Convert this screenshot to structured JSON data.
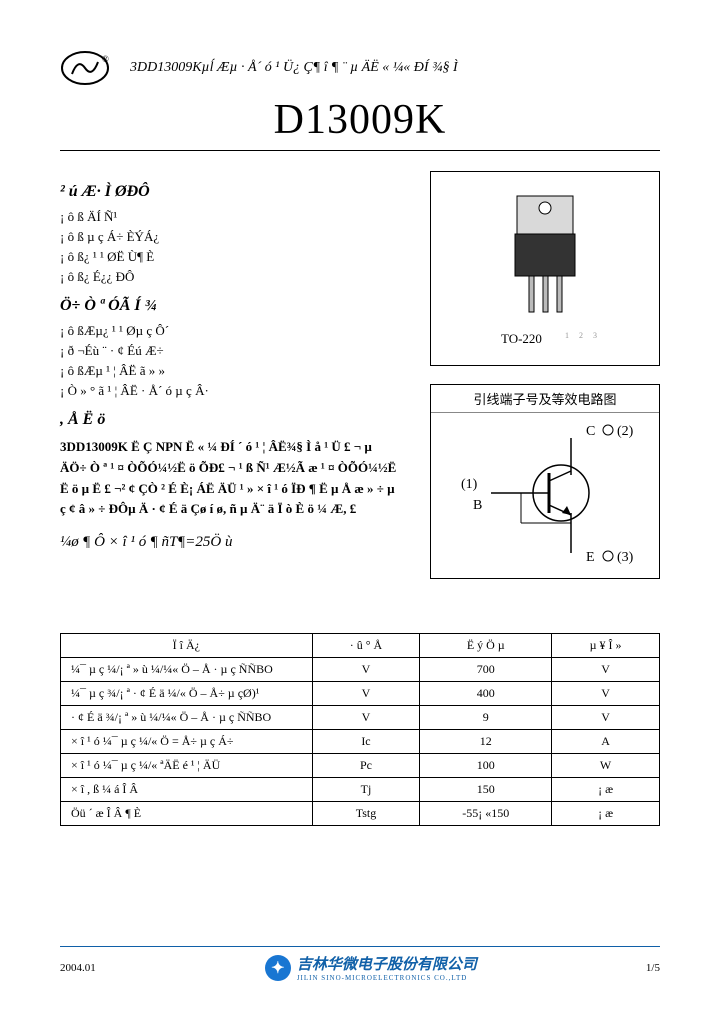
{
  "header": {
    "subtitle": "3DD13009Kµĺ Æµ · Å´ ó ¹ Ü¿ Ç¶ î ¶ ¨ µ ÄË « ¼« ÐÍ ¾§ Ì"
  },
  "title": "D13009K",
  "sections": {
    "features_heading": "² ú Æ· Ì ØÐÔ",
    "features": [
      "¡ ô ß ÄÍ Ñ¹",
      "¡ ô ß µ ç Á÷ ÈÝÁ¿",
      "¡ ô ß¿ ¹ ¹ ØË Ù¶ È",
      "¡ ô ß¿ É¿¿ ÐÔ"
    ],
    "apps_heading": "Ö÷ Ò ª ÓÃ Í ¾",
    "apps": [
      "¡ ô ßÆµ¿ ¹ ¹ Øµ ç Ô´",
      "¡ ð ¬Éù ¨ · ¢ Éú Æ÷",
      "¡ ô ßÆµ ¹ ¦ ÂË ã » »",
      "¡ Ò » ° ã ¹ ¦ ÂË · Å´ ó µ ç Â·"
    ],
    "desc_heading": ", Å Ë ö",
    "desc_text": "3DD13009K Ë Ç NPN Ë « ¼ ÐÍ ´ ó ¹ ¦ ÂË¾§ Ì å ¹ Ü £ ¬ µ ÄÖ÷ Ò ª ¹ ¤ ÒÕÓ¼½Ë ö ÕÐ£ ¬ ¹ ß Ñ¹ Æ½Ã æ ¹ ¤ ÒÕÓ¼½Ë Ë ö µ Ë £ ¬² ¢ ÇÒ ² É È¡ ÁË ÄÜ ¹ » × î ¹ ó ÏÐ ¶ Ë µ Å æ » ÷ µ ç ¢ â » ÷ ÐÔµ Ä · ¢ É ä Çø í ø, ñ µ Ä¨ ä Ï ò È ö ¼ Æ, £"
  },
  "ratings_title": "¼ø ¶ Ô × î ¹ ó ¶ ñT¶=25Ö ù",
  "package": {
    "label": "TO-220",
    "pins": "123"
  },
  "circuit": {
    "title": "引线端子号及等效电路图",
    "pin_c": "C ○ (2)",
    "pin_b": "(1)",
    "pin_b_label": "B",
    "pin_e": "E ○ (3)"
  },
  "table": {
    "headers": [
      "Ï î         Ä¿",
      "· û  ° Å",
      "Ë ý  Ö µ",
      "µ ¥   Î »"
    ],
    "rows": [
      [
        "¼¯ µ ç ¼/¡ ª » ù ¼/¼« Ö – Å · µ ç ÑÑBO",
        "V",
        "700",
        "V"
      ],
      [
        "¼¯ µ ç ¾/¡ ª · ¢ É ä ¼/« Ö – Å÷ µ çØ)¹",
        "V",
        "400",
        "V"
      ],
      [
        "· ¢ É ä ¾/¡ ª » ù ¼/¼« Ö – Å · µ ç ÑÑBO",
        "V",
        "9",
        "V"
      ],
      [
        "× î ¹ ó ¼¯ µ ç ¼/« Ö = Å÷ µ ç Á÷",
        "Ic",
        "12",
        "A"
      ],
      [
        "× î ¹ ó ¼¯ µ ç ¼/« ªÄË é ¹ ¦ ÄÜ",
        "Pc",
        "100",
        "W"
      ],
      [
        "× î , ß ¼ á Î Â",
        "Tj",
        "150",
        "¡ æ"
      ],
      [
        "Öü ´ æ Î Â ¶ È",
        "Tstg",
        "-55¡ «150",
        "¡ æ"
      ]
    ]
  },
  "footer": {
    "date": "2004.01",
    "company": "吉林华微电子股份有限公司",
    "company_sub": "JILIN SINO-MICROELECTRONICS CO.,LTD",
    "page": "1/5"
  },
  "colors": {
    "rule": "#000000",
    "footer_blue": "#1060a8",
    "logo_blue": "#1976d2"
  }
}
